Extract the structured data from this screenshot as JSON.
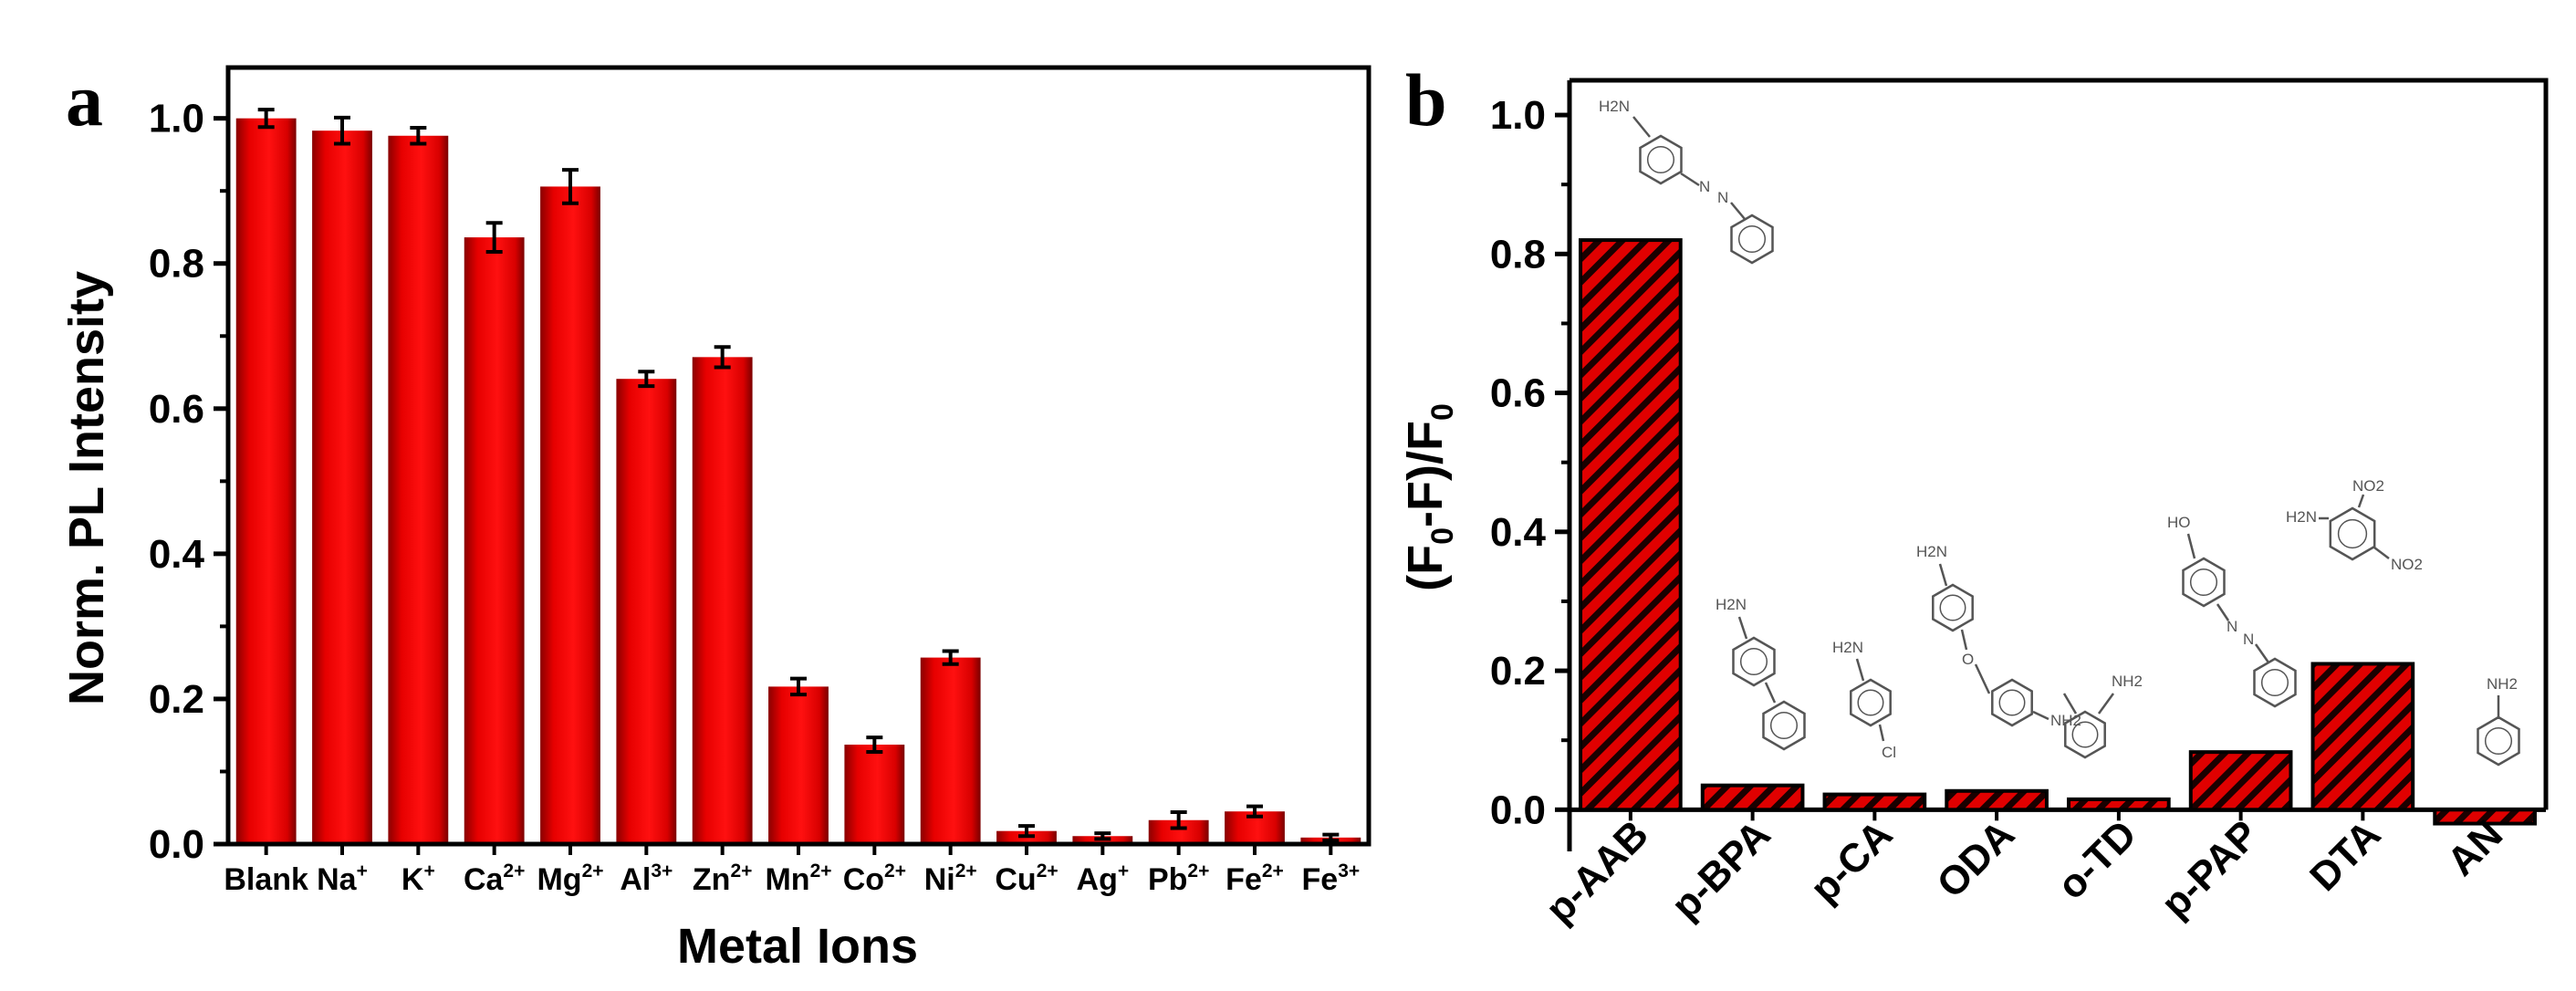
{
  "chart_data": [
    {
      "panel": "a",
      "type": "bar",
      "title": "",
      "xlabel": "Metal Ions",
      "ylabel": "Norm. PL Intensity",
      "ylim": [
        0,
        1.07
      ],
      "yticks": [
        "0.0",
        "0.2",
        "0.4",
        "0.6",
        "0.8",
        "1.0"
      ],
      "categories": [
        {
          "base": "Blank",
          "sup": ""
        },
        {
          "base": "Na",
          "sup": "+"
        },
        {
          "base": "K",
          "sup": "+"
        },
        {
          "base": "Ca",
          "sup": "2+"
        },
        {
          "base": "Mg",
          "sup": "2+"
        },
        {
          "base": "Al",
          "sup": "3+"
        },
        {
          "base": "Zn",
          "sup": "2+"
        },
        {
          "base": "Mn",
          "sup": "2+"
        },
        {
          "base": "Co",
          "sup": "2+"
        },
        {
          "base": "Ni",
          "sup": "2+"
        },
        {
          "base": "Cu",
          "sup": "2+"
        },
        {
          "base": "Ag",
          "sup": "+"
        },
        {
          "base": "Pb",
          "sup": "2+"
        },
        {
          "base": "Fe",
          "sup": "2+"
        },
        {
          "base": "Fe",
          "sup": "3+"
        }
      ],
      "values": [
        1.0,
        0.983,
        0.976,
        0.836,
        0.906,
        0.641,
        0.671,
        0.217,
        0.137,
        0.257,
        0.018,
        0.011,
        0.033,
        0.045,
        0.009
      ],
      "errors": [
        0.012,
        0.018,
        0.011,
        0.02,
        0.023,
        0.01,
        0.014,
        0.011,
        0.01,
        0.009,
        0.007,
        0.004,
        0.011,
        0.007,
        0.004
      ],
      "bar_color": "#e00000",
      "grid": false
    },
    {
      "panel": "b",
      "type": "bar",
      "title": "",
      "xlabel": "",
      "ylabel": "(F0-F)/F0",
      "ylim": [
        -0.06,
        1.05
      ],
      "yticks": [
        "0.0",
        "0.2",
        "0.4",
        "0.6",
        "0.8",
        "1.0"
      ],
      "categories": [
        "p-AAB",
        "p-BPA",
        "p-CA",
        "ODA",
        "o-TD",
        "p-PAP",
        "DTA",
        "AN"
      ],
      "values": [
        0.82,
        0.035,
        0.022,
        0.027,
        0.015,
        0.083,
        0.21,
        -0.02
      ],
      "bar_color": "#e00000",
      "hatch_color": "#000000",
      "grid": false,
      "structure_labels": {
        "p-AAB": [
          "H2N",
          "N",
          "N"
        ],
        "p-BPA": [
          "H2N"
        ],
        "p-CA": [
          "H2N",
          "Cl"
        ],
        "ODA": [
          "H2N",
          "O",
          "NH2"
        ],
        "o-TD": [
          "NH2"
        ],
        "p-PAP": [
          "HO",
          "N",
          "N"
        ],
        "DTA": [
          "H2N",
          "NO2",
          "NO2"
        ],
        "AN": [
          "NH2"
        ]
      }
    }
  ]
}
